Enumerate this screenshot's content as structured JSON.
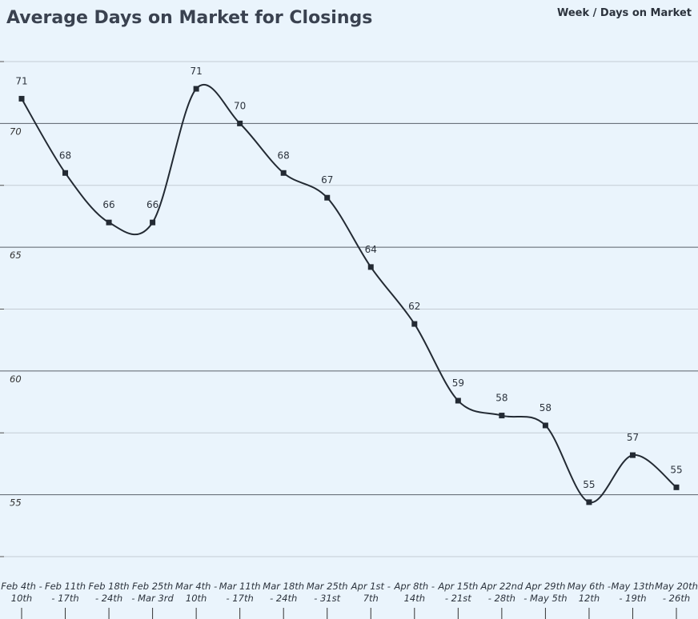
{
  "chart_data": {
    "type": "line",
    "title": "Average Days on Market for Closings",
    "subtitle": "Week / Days on Market",
    "categories": [
      "Feb 4th -\n10th",
      "Feb 11th\n- 17th",
      "Feb 18th\n- 24th",
      "Feb 25th\n- Mar 3rd",
      "Mar 4th -\n10th",
      "Mar 11th\n- 17th",
      "Mar 18th\n- 24th",
      "Mar 25th\n- 31st",
      "Apr 1st -\n7th",
      "Apr 8th -\n14th",
      "Apr 15th\n- 21st",
      "Apr 22nd\n- 28th",
      "Apr 29th\n- May 5th",
      "May 6th -\n12th",
      "May 13th\n- 19th",
      "May 20th\n- 26th"
    ],
    "series": [
      {
        "name": "Days on Market",
        "color": "#232a33",
        "values": [
          71.0,
          68.0,
          66.0,
          66.0,
          71.4,
          70.0,
          68.0,
          67.0,
          64.2,
          61.9,
          58.8,
          58.2,
          57.8,
          54.7,
          56.6,
          55.3
        ],
        "value_labels": [
          "71",
          "68",
          "66",
          "66",
          "71",
          "70",
          "68",
          "67",
          "64",
          "62",
          "59",
          "58",
          "58",
          "55",
          "57",
          "55"
        ]
      }
    ],
    "ylim": [
      52.5,
      72.5
    ],
    "yticks": [
      55,
      60,
      65,
      70
    ],
    "minor_yticks": [
      52.5,
      57.5,
      62.5,
      67.5,
      72.5
    ],
    "grid": true
  }
}
